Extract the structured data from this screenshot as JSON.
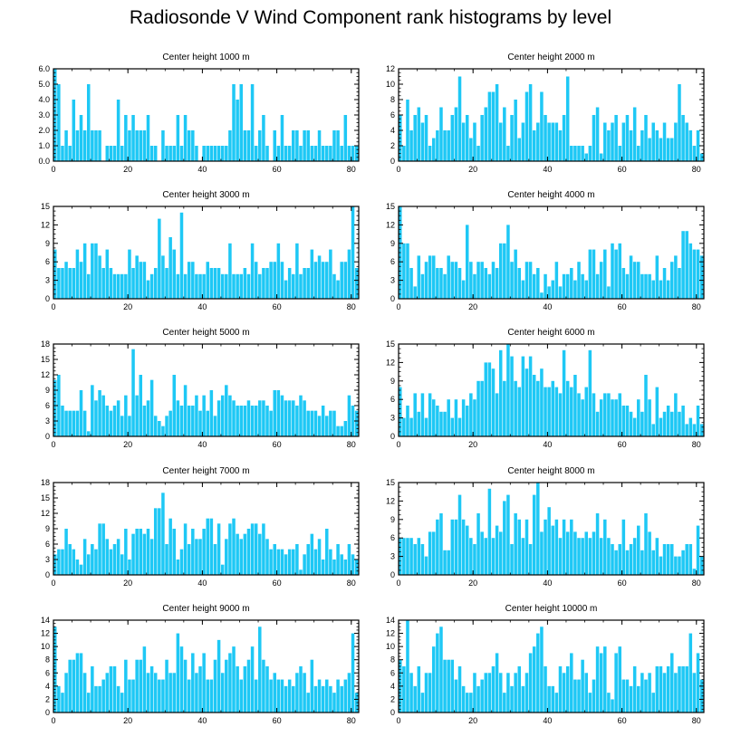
{
  "title": "Radiosonde V Wind Component rank histograms by level",
  "bar_color": "#1EC8F5",
  "chart_data": [
    {
      "type": "bar",
      "title": "Center height 1000 m",
      "xlim": [
        0,
        82
      ],
      "xticks": [
        0,
        20,
        40,
        60,
        80
      ],
      "ylim": [
        0,
        6
      ],
      "yticks": [
        0,
        1,
        2,
        3,
        4,
        5,
        6
      ],
      "ytick_labels": [
        "0.0",
        "1.0",
        "2.0",
        "3.0",
        "4.0",
        "5.0",
        "6.0"
      ],
      "values": [
        6,
        5,
        1,
        2,
        1,
        4,
        2,
        3,
        2,
        5,
        2,
        2,
        2,
        0,
        1,
        1,
        1,
        4,
        1,
        3,
        2,
        3,
        2,
        2,
        2,
        3,
        1,
        1,
        0,
        2,
        1,
        1,
        1,
        3,
        1,
        3,
        2,
        2,
        1,
        0,
        1,
        1,
        1,
        1,
        1,
        1,
        1,
        2,
        5,
        4,
        5,
        2,
        2,
        5,
        1,
        2,
        3,
        1,
        0,
        2,
        1,
        3,
        1,
        1,
        2,
        2,
        1,
        2,
        2,
        1,
        1,
        2,
        1,
        1,
        1,
        2,
        2,
        1,
        3,
        1,
        1,
        1
      ]
    },
    {
      "type": "bar",
      "title": "Center height 2000 m",
      "xlim": [
        0,
        82
      ],
      "xticks": [
        0,
        20,
        40,
        60,
        80
      ],
      "ylim": [
        0,
        12
      ],
      "yticks": [
        0,
        2,
        4,
        6,
        8,
        10,
        12
      ],
      "values": [
        6,
        2,
        8,
        4,
        6,
        7,
        5,
        6,
        2,
        3,
        4,
        7,
        4,
        4,
        6,
        7,
        11,
        5,
        6,
        3,
        5,
        2,
        6,
        7,
        9,
        9,
        10,
        5,
        7,
        2,
        6,
        8,
        3,
        5,
        9,
        10,
        4,
        5,
        9,
        6,
        5,
        5,
        5,
        4,
        6,
        11,
        2,
        2,
        2,
        2,
        1,
        2,
        6,
        7,
        1,
        5,
        4,
        5,
        6,
        2,
        5,
        6,
        4,
        7,
        2,
        4,
        6,
        3,
        5,
        4,
        3,
        5,
        3,
        3,
        5,
        10,
        6,
        5,
        4,
        2,
        4,
        1
      ]
    },
    {
      "type": "bar",
      "title": "Center height 3000 m",
      "xlim": [
        0,
        82
      ],
      "xticks": [
        0,
        20,
        40,
        60,
        80
      ],
      "ylim": [
        0,
        15
      ],
      "yticks": [
        0,
        3,
        6,
        9,
        12,
        15
      ],
      "values": [
        8,
        5,
        5,
        6,
        5,
        5,
        8,
        6,
        9,
        4,
        9,
        9,
        7,
        5,
        8,
        5,
        4,
        4,
        4,
        4,
        8,
        5,
        7,
        6,
        6,
        3,
        4,
        5,
        13,
        7,
        5,
        10,
        8,
        4,
        14,
        4,
        6,
        6,
        4,
        4,
        4,
        6,
        5,
        5,
        5,
        4,
        4,
        9,
        4,
        4,
        4,
        5,
        4,
        9,
        6,
        4,
        5,
        5,
        6,
        6,
        9,
        6,
        3,
        5,
        4,
        9,
        4,
        5,
        5,
        8,
        6,
        7,
        6,
        6,
        8,
        4,
        3,
        6,
        6,
        8,
        15,
        5
      ]
    },
    {
      "type": "bar",
      "title": "Center height 4000 m",
      "xlim": [
        0,
        82
      ],
      "xticks": [
        0,
        20,
        40,
        60,
        80
      ],
      "ylim": [
        0,
        15
      ],
      "yticks": [
        0,
        3,
        6,
        9,
        12,
        15
      ],
      "values": [
        15,
        9,
        9,
        5,
        2,
        7,
        4,
        6,
        7,
        7,
        5,
        5,
        4,
        7,
        6,
        6,
        5,
        3,
        12,
        6,
        4,
        6,
        6,
        5,
        4,
        6,
        5,
        9,
        9,
        12,
        6,
        8,
        5,
        3,
        6,
        6,
        4,
        5,
        1,
        4,
        2,
        3,
        6,
        2,
        4,
        4,
        5,
        3,
        6,
        4,
        3,
        8,
        8,
        4,
        6,
        8,
        2,
        9,
        8,
        9,
        5,
        4,
        7,
        6,
        6,
        4,
        4,
        4,
        3,
        7,
        3,
        5,
        3,
        6,
        7,
        5,
        11,
        11,
        9,
        8,
        8,
        7
      ]
    },
    {
      "type": "bar",
      "title": "Center height 5000 m",
      "xlim": [
        0,
        82
      ],
      "xticks": [
        0,
        20,
        40,
        60,
        80
      ],
      "ylim": [
        0,
        18
      ],
      "yticks": [
        0,
        3,
        6,
        9,
        12,
        15,
        18
      ],
      "values": [
        11,
        12,
        6,
        5,
        5,
        5,
        5,
        9,
        5,
        1,
        10,
        7,
        9,
        8,
        6,
        5,
        6,
        7,
        4,
        8,
        4,
        17,
        8,
        12,
        6,
        7,
        11,
        4,
        3,
        2,
        4,
        5,
        12,
        7,
        6,
        10,
        6,
        6,
        8,
        5,
        8,
        5,
        9,
        4,
        7,
        8,
        10,
        8,
        7,
        6,
        6,
        6,
        7,
        6,
        6,
        7,
        7,
        6,
        5,
        9,
        9,
        8,
        7,
        7,
        7,
        6,
        8,
        7,
        5,
        5,
        5,
        4,
        6,
        4,
        5,
        5,
        2,
        2,
        3,
        8,
        6,
        5
      ]
    },
    {
      "type": "bar",
      "title": "Center height 6000 m",
      "xlim": [
        0,
        82
      ],
      "xticks": [
        0,
        20,
        40,
        60,
        80
      ],
      "ylim": [
        0,
        15
      ],
      "yticks": [
        0,
        3,
        6,
        9,
        12,
        15
      ],
      "values": [
        8,
        3,
        5,
        3,
        7,
        4,
        7,
        3,
        7,
        6,
        5,
        4,
        4,
        6,
        3,
        6,
        3,
        6,
        5,
        7,
        6,
        9,
        9,
        12,
        12,
        11,
        7,
        14,
        9,
        15,
        13,
        9,
        8,
        13,
        11,
        13,
        10,
        9,
        11,
        8,
        8,
        9,
        8,
        7,
        14,
        9,
        8,
        10,
        7,
        6,
        8,
        14,
        7,
        4,
        6,
        7,
        7,
        6,
        6,
        7,
        5,
        5,
        4,
        3,
        6,
        4,
        10,
        6,
        2,
        8,
        3,
        4,
        5,
        4,
        7,
        4,
        5,
        2,
        3,
        2,
        5,
        2
      ]
    },
    {
      "type": "bar",
      "title": "Center height 7000 m",
      "xlim": [
        0,
        82
      ],
      "xticks": [
        0,
        20,
        40,
        60,
        80
      ],
      "ylim": [
        0,
        18
      ],
      "yticks": [
        0,
        3,
        6,
        9,
        12,
        15,
        18
      ],
      "values": [
        4,
        5,
        5,
        9,
        6,
        5,
        3,
        2,
        7,
        4,
        6,
        5,
        10,
        10,
        7,
        5,
        6,
        7,
        4,
        9,
        3,
        8,
        9,
        9,
        8,
        9,
        7,
        13,
        13,
        16,
        6,
        11,
        9,
        3,
        5,
        10,
        6,
        9,
        7,
        7,
        9,
        11,
        11,
        6,
        10,
        2,
        7,
        10,
        11,
        8,
        7,
        8,
        9,
        10,
        10,
        8,
        10,
        7,
        5,
        6,
        5,
        5,
        4,
        5,
        5,
        6,
        1,
        4,
        6,
        8,
        5,
        7,
        3,
        9,
        5,
        3,
        6,
        4,
        3,
        6,
        4,
        3
      ]
    },
    {
      "type": "bar",
      "title": "Center height 8000 m",
      "xlim": [
        0,
        82
      ],
      "xticks": [
        0,
        20,
        40,
        60,
        80
      ],
      "ylim": [
        0,
        15
      ],
      "yticks": [
        0,
        3,
        6,
        9,
        12,
        15
      ],
      "values": [
        6,
        6,
        6,
        6,
        5,
        6,
        5,
        3,
        7,
        7,
        9,
        10,
        4,
        4,
        9,
        9,
        13,
        9,
        8,
        6,
        5,
        10,
        7,
        6,
        14,
        6,
        8,
        7,
        12,
        13,
        5,
        10,
        9,
        6,
        9,
        5,
        13,
        15,
        7,
        9,
        11,
        8,
        9,
        6,
        9,
        7,
        9,
        7,
        6,
        6,
        7,
        6,
        7,
        10,
        6,
        9,
        6,
        5,
        4,
        5,
        9,
        4,
        5,
        6,
        8,
        4,
        10,
        7,
        4,
        6,
        3,
        5,
        5,
        5,
        3,
        3,
        4,
        5,
        5,
        1,
        8,
        3
      ]
    },
    {
      "type": "bar",
      "title": "Center height 9000 m",
      "xlim": [
        0,
        82
      ],
      "xticks": [
        0,
        20,
        40,
        60,
        80
      ],
      "ylim": [
        0,
        14
      ],
      "yticks": [
        0,
        2,
        4,
        6,
        8,
        10,
        12,
        14
      ],
      "values": [
        13,
        4,
        3,
        6,
        8,
        8,
        9,
        9,
        6,
        3,
        7,
        4,
        4,
        5,
        6,
        7,
        7,
        4,
        3,
        8,
        5,
        5,
        8,
        8,
        10,
        6,
        7,
        6,
        5,
        5,
        8,
        6,
        6,
        12,
        10,
        8,
        5,
        9,
        6,
        7,
        9,
        5,
        5,
        8,
        11,
        6,
        8,
        9,
        10,
        7,
        5,
        7,
        8,
        10,
        5,
        13,
        8,
        7,
        5,
        6,
        5,
        5,
        4,
        5,
        4,
        6,
        7,
        6,
        3,
        8,
        4,
        5,
        4,
        5,
        4,
        3,
        5,
        4,
        5,
        6,
        12,
        3
      ]
    },
    {
      "type": "bar",
      "title": "Center height 10000 m",
      "xlim": [
        0,
        82
      ],
      "xticks": [
        0,
        20,
        40,
        60,
        80
      ],
      "ylim": [
        0,
        14
      ],
      "yticks": [
        0,
        2,
        4,
        6,
        8,
        10,
        12,
        14
      ],
      "values": [
        8,
        7,
        14,
        6,
        4,
        7,
        3,
        6,
        6,
        10,
        12,
        13,
        8,
        8,
        8,
        5,
        7,
        4,
        3,
        3,
        6,
        4,
        5,
        6,
        6,
        7,
        9,
        6,
        3,
        6,
        4,
        6,
        7,
        4,
        6,
        9,
        10,
        12,
        13,
        7,
        4,
        4,
        3,
        7,
        6,
        7,
        9,
        5,
        5,
        8,
        6,
        3,
        5,
        10,
        9,
        10,
        3,
        2,
        9,
        10,
        5,
        5,
        4,
        7,
        4,
        6,
        5,
        6,
        3,
        7,
        7,
        6,
        7,
        9,
        6,
        7,
        7,
        7,
        12,
        6,
        9,
        5
      ]
    }
  ]
}
